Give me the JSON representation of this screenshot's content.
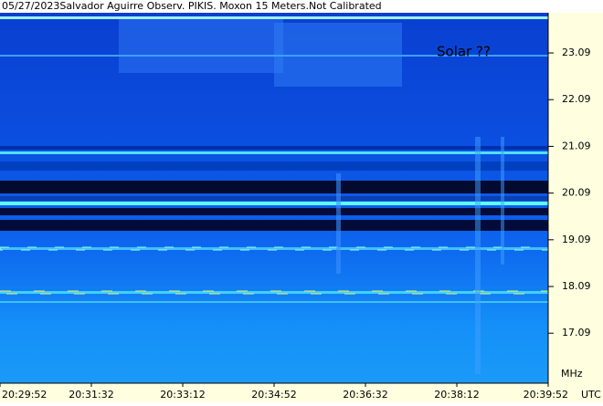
{
  "chart_data": {
    "type": "spectrogram",
    "title": "05/27/2023Salvador Aguirre Observ. PIKIS. Moxon 15 Meters.Not Calibrated",
    "xlabel": "UTC",
    "ylabel": "MHz",
    "xlim": [
      73792,
      74392
    ],
    "xticks": [
      {
        "value": 73792,
        "label": "20:29:52"
      },
      {
        "value": 73892,
        "label": "20:31:32"
      },
      {
        "value": 73992,
        "label": "20:33:12"
      },
      {
        "value": 74092,
        "label": "20:34:52"
      },
      {
        "value": 74192,
        "label": "20:36:32"
      },
      {
        "value": 74292,
        "label": "20:38:12"
      },
      {
        "value": 74392,
        "label": "20:39:52"
      }
    ],
    "ylim": [
      16.02,
      23.95
    ],
    "yticks": [
      17.09,
      18.09,
      19.09,
      20.09,
      21.09,
      22.09,
      23.09
    ],
    "annotations": [
      "Solar ??"
    ],
    "annotation_color": "#e01010"
  }
}
